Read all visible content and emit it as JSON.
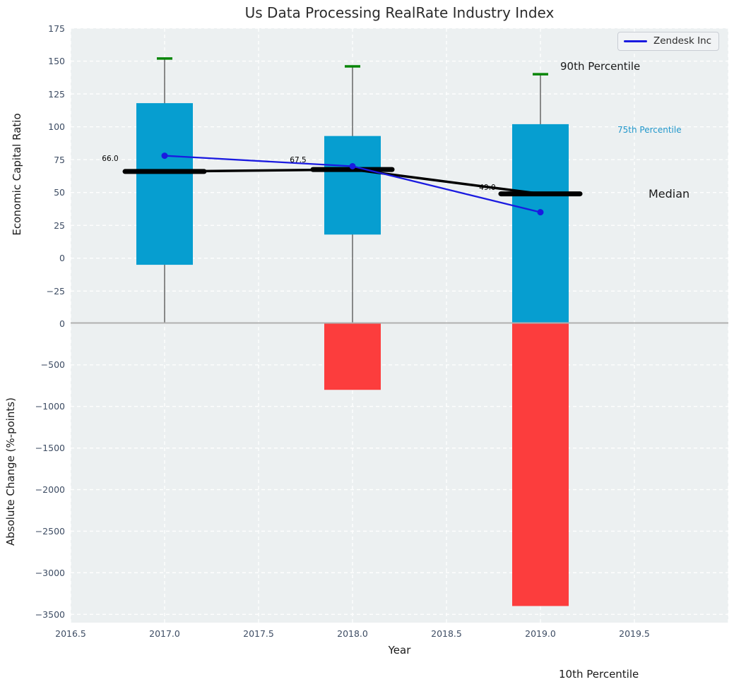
{
  "title": "Us Data Processing RealRate Industry Index",
  "legend": {
    "series_label": "Zendesk Inc"
  },
  "labels": {
    "p90": "90th Percentile",
    "p75": "75th Percentile",
    "median": "Median",
    "p10": "10th Percentile"
  },
  "chart_data": {
    "type": "box-bar-combo",
    "title": "Us Data Processing RealRate Industry Index",
    "xlabel": "Year",
    "categories": [
      2017,
      2018,
      2019
    ],
    "top_axis": {
      "ylabel": "Economic Capital Ratio",
      "ylim": [
        -49,
        175
      ],
      "yticks": [
        175,
        150,
        125,
        100,
        75,
        50,
        25,
        0,
        -25
      ],
      "xlim": [
        2016.5,
        2020.0
      ],
      "xticks": [
        "2016.5",
        "2017.0",
        "2017.5",
        "2018.0",
        "2018.5",
        "2019.0",
        "2019.5"
      ],
      "grid": true,
      "p90_caps": [
        152,
        146,
        140
      ],
      "p75_box_top": [
        118,
        93,
        102
      ],
      "p25_box_bottom": [
        -5,
        18,
        -49
      ],
      "box_bottom_clipped": [
        false,
        false,
        true
      ],
      "medians": [
        66.0,
        67.5,
        49.0
      ],
      "median_labels": [
        "66.0",
        "67.5",
        "49.0"
      ],
      "series": [
        {
          "name": "Zendesk Inc",
          "values": [
            78,
            70,
            35
          ]
        }
      ]
    },
    "bottom_axis": {
      "ylabel": "Absolute Change (%-points)",
      "ylim": [
        -3600,
        0
      ],
      "yticks": [
        0,
        -500,
        -1000,
        -1500,
        -2000,
        -2500,
        -3000,
        -3500
      ],
      "grid": true,
      "p10_bars": [
        0,
        -800,
        -3400
      ]
    },
    "legend_position": "upper right",
    "colors": {
      "box": "#069ed0",
      "negative_bar": "#fc3d3d",
      "p90_cap": "#088608",
      "median": "#000000",
      "series_line": "#1a1ae0",
      "whisker": "#6e6e6e",
      "plot_bg": "#ecf0f1",
      "grid": "#ffffff",
      "tick_text": "#3d4c63",
      "p75_label_text": "#2298cc",
      "panel_divider": "#b0b0b0"
    }
  }
}
